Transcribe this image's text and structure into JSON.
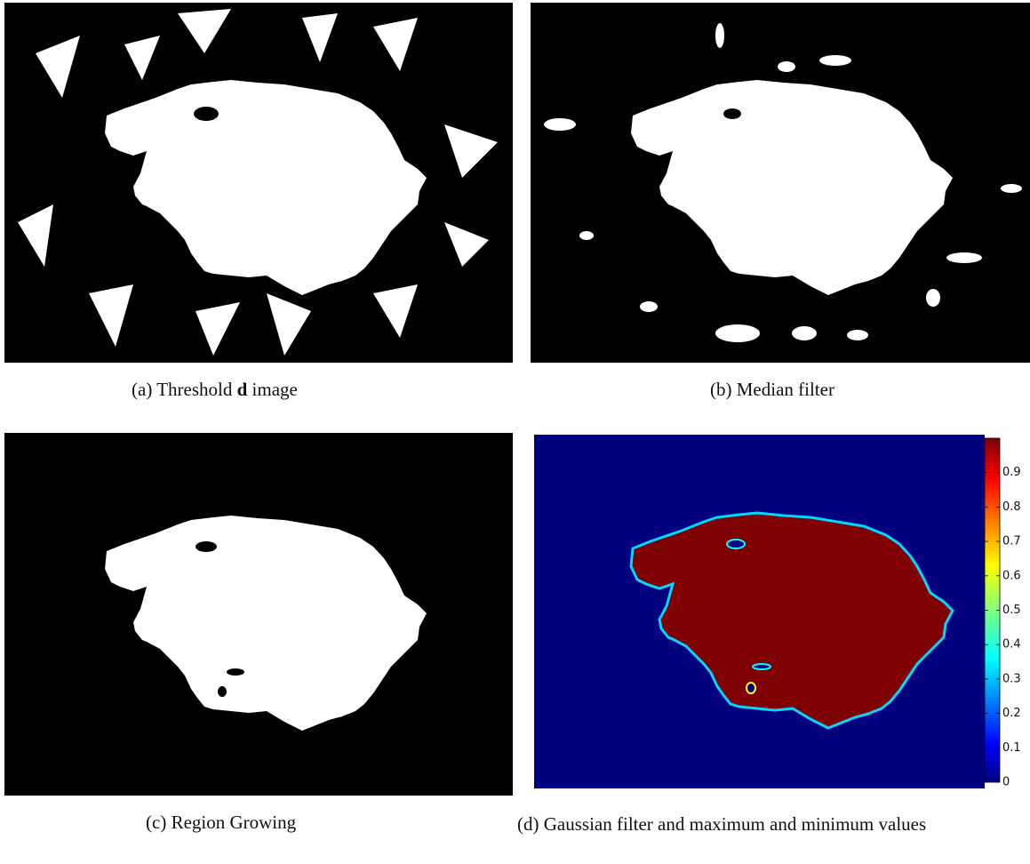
{
  "panels": [
    {
      "label": "(a)",
      "text": "Threshold",
      "bold": "d",
      "text2": "image"
    },
    {
      "label": "(b)",
      "text": "Median filter"
    },
    {
      "label": "(c)",
      "text": "Region Growing"
    },
    {
      "label": "(d)",
      "text": "Gaussian filter and maximum and minimum values"
    }
  ],
  "colorbar": {
    "lim": [
      0,
      1
    ],
    "ticks": [
      0,
      0.1,
      0.2,
      0.3,
      0.4,
      0.5,
      0.6,
      0.7,
      0.8,
      0.9
    ]
  }
}
